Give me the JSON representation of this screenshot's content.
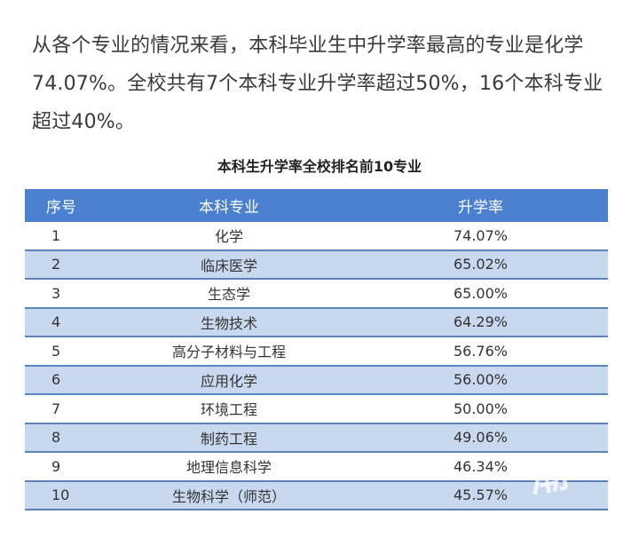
{
  "paragraph": "从各个专业的情况来看，本科毕业生中升学率最高的专业是化学74.07%。全校共有7个本科专业升学率超过50%，16个本科专业超过40%。",
  "table": {
    "caption": "本科生升学率全校排名前10专业",
    "headers": [
      "序号",
      "本科专业",
      "升学率"
    ],
    "rows": [
      [
        "1",
        "化学",
        "74.07%"
      ],
      [
        "2",
        "临床医学",
        "65.02%"
      ],
      [
        "3",
        "生态学",
        "65.00%"
      ],
      [
        "4",
        "生物技术",
        "64.29%"
      ],
      [
        "5",
        "高分子材料与工程",
        "56.76%"
      ],
      [
        "6",
        "应用化学",
        "56.00%"
      ],
      [
        "7",
        "环境工程",
        "50.00%"
      ],
      [
        "8",
        "制药工程",
        "49.06%"
      ],
      [
        "9",
        "地理信息科学",
        "46.34%"
      ],
      [
        "10",
        "生物科学（师范）",
        "45.57%"
      ]
    ]
  },
  "colors": {
    "header_bg": "#4a80cf",
    "alt_row_bg": "#c7d8ef",
    "row_border": "#5b84b8"
  },
  "watermark": "潮"
}
